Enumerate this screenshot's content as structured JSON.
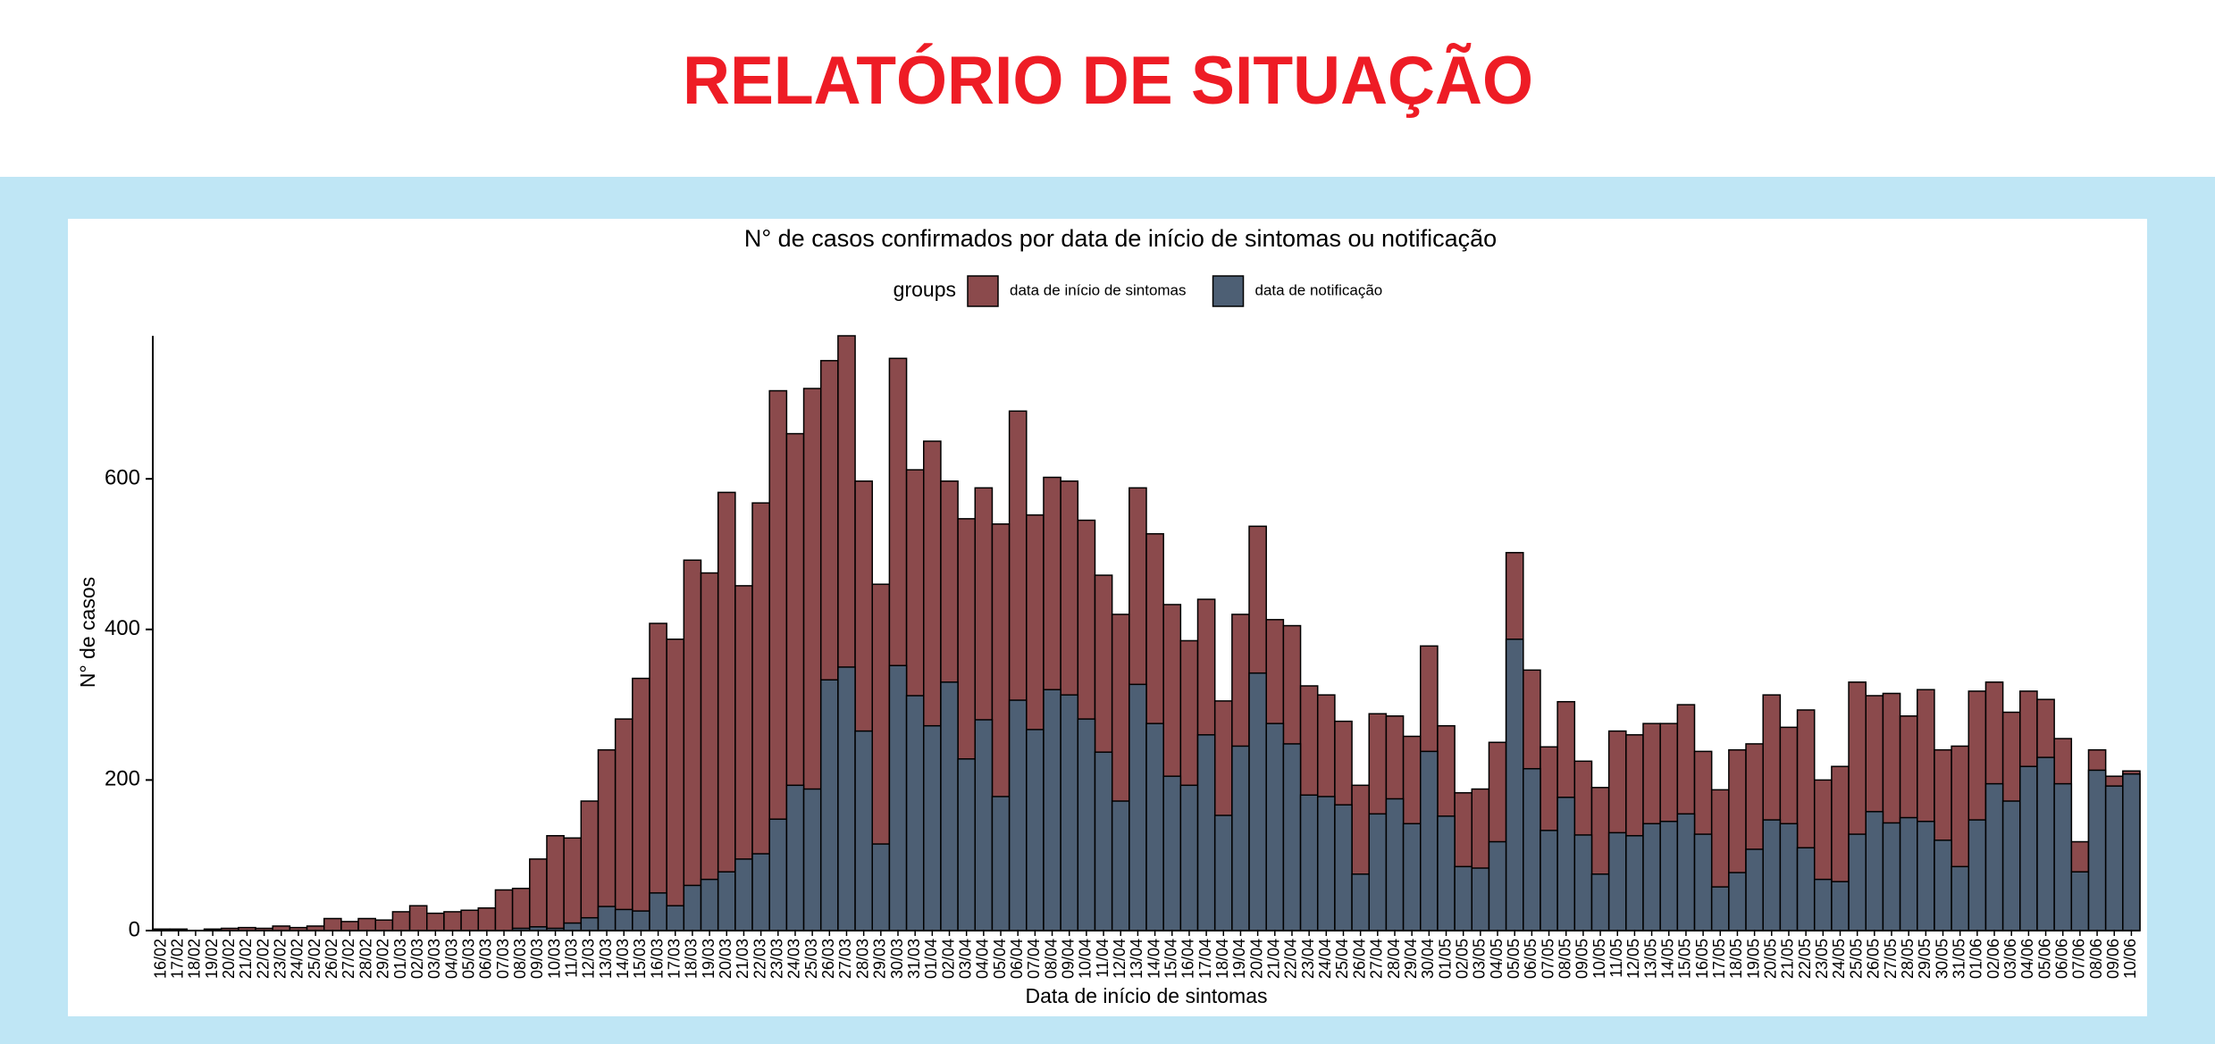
{
  "header": {
    "title": "RELATÓRIO DE SITUAÇÃO"
  },
  "chart_data": {
    "type": "bar",
    "title": "N° de casos confirmados por data de início de sintomas ou notificação",
    "legend_title": "groups",
    "x_label": "Data de início de sintomas",
    "y_label": "N° de casos",
    "categories": [
      "16/02",
      "17/02",
      "18/02",
      "19/02",
      "20/02",
      "21/02",
      "22/02",
      "23/02",
      "24/02",
      "25/02",
      "26/02",
      "27/02",
      "28/02",
      "29/02",
      "01/03",
      "02/03",
      "03/03",
      "04/03",
      "05/03",
      "06/03",
      "07/03",
      "08/03",
      "09/03",
      "10/03",
      "11/03",
      "12/03",
      "13/03",
      "14/03",
      "15/03",
      "16/03",
      "17/03",
      "18/03",
      "19/03",
      "20/03",
      "21/03",
      "22/03",
      "23/03",
      "24/03",
      "25/03",
      "26/03",
      "27/03",
      "28/03",
      "29/03",
      "30/03",
      "31/03",
      "01/04",
      "02/04",
      "03/04",
      "04/04",
      "05/04",
      "06/04",
      "07/04",
      "08/04",
      "09/04",
      "10/04",
      "11/04",
      "12/04",
      "13/04",
      "14/04",
      "15/04",
      "16/04",
      "17/04",
      "18/04",
      "19/04",
      "20/04",
      "21/04",
      "22/04",
      "23/04",
      "24/04",
      "25/04",
      "26/04",
      "27/04",
      "28/04",
      "29/04",
      "30/04",
      "01/05",
      "02/05",
      "03/05",
      "04/05",
      "05/05",
      "06/05",
      "07/05",
      "08/05",
      "09/05",
      "10/05",
      "11/05",
      "12/05",
      "13/05",
      "14/05",
      "15/05",
      "16/05",
      "17/05",
      "18/05",
      "19/05",
      "20/05",
      "21/05",
      "22/05",
      "23/05",
      "24/05",
      "25/05",
      "26/05",
      "27/05",
      "28/05",
      "29/05",
      "30/05",
      "31/05",
      "01/06",
      "02/06",
      "03/06",
      "04/06",
      "05/06",
      "06/06",
      "07/06",
      "08/06",
      "09/06",
      "10/06"
    ],
    "series": [
      {
        "name": "data de início de sintomas",
        "color": "#8b4a4c",
        "values": [
          2,
          2,
          0,
          2,
          3,
          4,
          3,
          6,
          4,
          6,
          16,
          12,
          16,
          14,
          25,
          33,
          23,
          25,
          27,
          30,
          54,
          56,
          95,
          126,
          123,
          172,
          240,
          281,
          335,
          408,
          387,
          492,
          475,
          582,
          458,
          568,
          717,
          660,
          720,
          757,
          790,
          597,
          460,
          760,
          612,
          650,
          597,
          547,
          588,
          540,
          690,
          552,
          602,
          597,
          545,
          472,
          420,
          588,
          527,
          433,
          385,
          440,
          305,
          420,
          537,
          413,
          405,
          325,
          313,
          278,
          193,
          288,
          285,
          258,
          378,
          272,
          183,
          188,
          250,
          502,
          346,
          244,
          304,
          225,
          190,
          265,
          260,
          275,
          275,
          300,
          238,
          187,
          240,
          248,
          313,
          270,
          293,
          200,
          218,
          330,
          312,
          315,
          285,
          320,
          240,
          245,
          318,
          330,
          290,
          318,
          307,
          255,
          118,
          240,
          205,
          212
        ]
      },
      {
        "name": "data de notificação",
        "color": "#4d5f74",
        "values": [
          0,
          0,
          0,
          0,
          0,
          0,
          0,
          0,
          0,
          0,
          0,
          0,
          0,
          0,
          0,
          0,
          0,
          0,
          0,
          0,
          0,
          3,
          5,
          3,
          10,
          17,
          32,
          28,
          26,
          50,
          33,
          60,
          68,
          78,
          95,
          102,
          148,
          193,
          188,
          333,
          350,
          265,
          115,
          352,
          312,
          272,
          330,
          228,
          280,
          178,
          306,
          267,
          320,
          313,
          281,
          237,
          172,
          327,
          275,
          205,
          193,
          260,
          153,
          245,
          342,
          275,
          248,
          180,
          178,
          167,
          75,
          155,
          175,
          142,
          238,
          152,
          85,
          83,
          118,
          387,
          215,
          133,
          177,
          127,
          75,
          130,
          126,
          142,
          145,
          155,
          128,
          58,
          77,
          108,
          147,
          142,
          110,
          68,
          65,
          128,
          158,
          143,
          150,
          145,
          120,
          85,
          147,
          195,
          172,
          218,
          230,
          195,
          78,
          213,
          192,
          208
        ]
      }
    ],
    "ylim": [
      0,
      790
    ],
    "yticks": [
      0,
      200,
      400,
      600
    ],
    "grid": false
  }
}
